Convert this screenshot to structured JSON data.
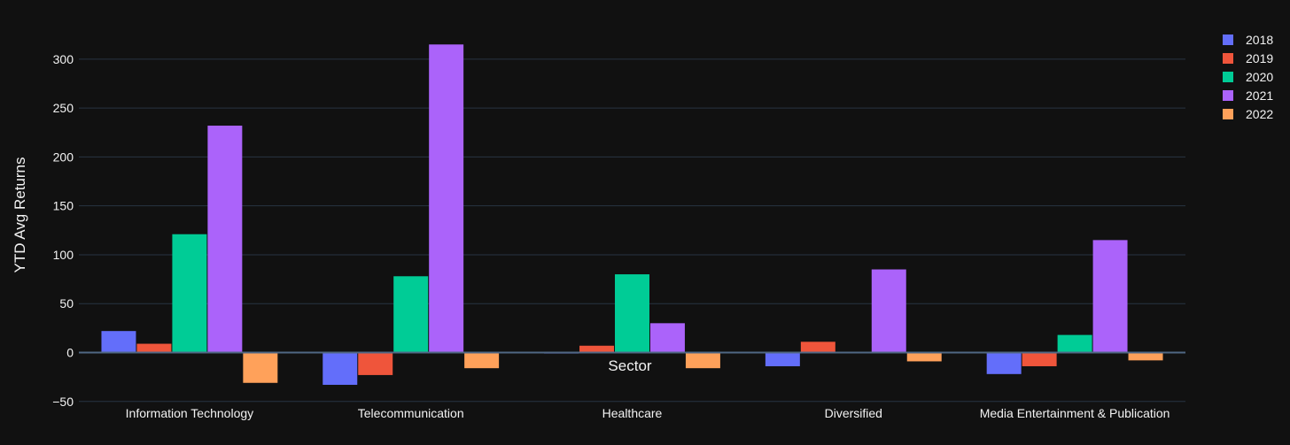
{
  "chart_data": {
    "type": "bar",
    "xlabel": "Sector",
    "ylabel": "YTD Avg Returns",
    "ylim": [
      -57,
      335
    ],
    "yticks": [
      -50,
      0,
      50,
      100,
      150,
      200,
      250,
      300
    ],
    "ytick_labels": [
      "−50",
      "0",
      "50",
      "100",
      "150",
      "200",
      "250",
      "300"
    ],
    "grid": true,
    "legend_position": "top-right",
    "categories": [
      "Information Technology",
      "Telecommunication",
      "Healthcare",
      "Diversified",
      "Media Entertainment & Publication"
    ],
    "series": [
      {
        "name": "2018",
        "color": "#636efa",
        "values": [
          22,
          -33,
          -1,
          -14,
          -22
        ]
      },
      {
        "name": "2019",
        "color": "#ef553b",
        "values": [
          9,
          -23,
          7,
          11,
          -14
        ]
      },
      {
        "name": "2020",
        "color": "#00cc96",
        "values": [
          121,
          78,
          80,
          0,
          18
        ]
      },
      {
        "name": "2021",
        "color": "#ab63fa",
        "values": [
          232,
          315,
          30,
          85,
          115
        ]
      },
      {
        "name": "2022",
        "color": "#ffa15a",
        "values": [
          -31,
          -16,
          -16,
          -9,
          -8
        ]
      }
    ]
  }
}
